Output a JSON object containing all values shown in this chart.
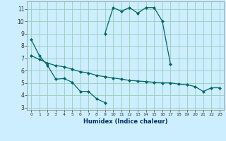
{
  "xlabel": "Humidex (Indice chaleur)",
  "background_color": "#cceeff",
  "grid_color": "#99ccbb",
  "line_color": "#006666",
  "xlim": [
    -0.5,
    23.5
  ],
  "ylim": [
    2.8,
    11.6
  ],
  "yticks": [
    3,
    4,
    5,
    6,
    7,
    8,
    9,
    10,
    11
  ],
  "xticks": [
    0,
    1,
    2,
    3,
    4,
    5,
    6,
    7,
    8,
    9,
    10,
    11,
    12,
    13,
    14,
    15,
    16,
    17,
    18,
    19,
    20,
    21,
    22,
    23
  ],
  "curve1_x": [
    0,
    1,
    2,
    3,
    4,
    5,
    6,
    7,
    8,
    9
  ],
  "curve1_y": [
    8.5,
    7.2,
    6.4,
    5.3,
    5.35,
    5.05,
    4.3,
    4.3,
    3.7,
    3.4
  ],
  "curve2_x": [
    9,
    10,
    11,
    12,
    13,
    14,
    15,
    16,
    17
  ],
  "curve2_y": [
    9.0,
    11.1,
    10.8,
    11.1,
    10.65,
    11.1,
    11.1,
    10.0,
    6.5
  ],
  "curve3_x": [
    0,
    1,
    2,
    3,
    4,
    5,
    6,
    7,
    8,
    9,
    10,
    11,
    12,
    13,
    14,
    15,
    16,
    17,
    18,
    19,
    20,
    21,
    22,
    23
  ],
  "curve3_y": [
    7.2,
    6.9,
    6.6,
    6.4,
    6.3,
    6.1,
    5.9,
    5.8,
    5.6,
    5.5,
    5.4,
    5.3,
    5.2,
    5.15,
    5.1,
    5.05,
    5.0,
    5.0,
    4.9,
    4.85,
    4.7,
    4.3,
    4.6,
    4.6
  ]
}
